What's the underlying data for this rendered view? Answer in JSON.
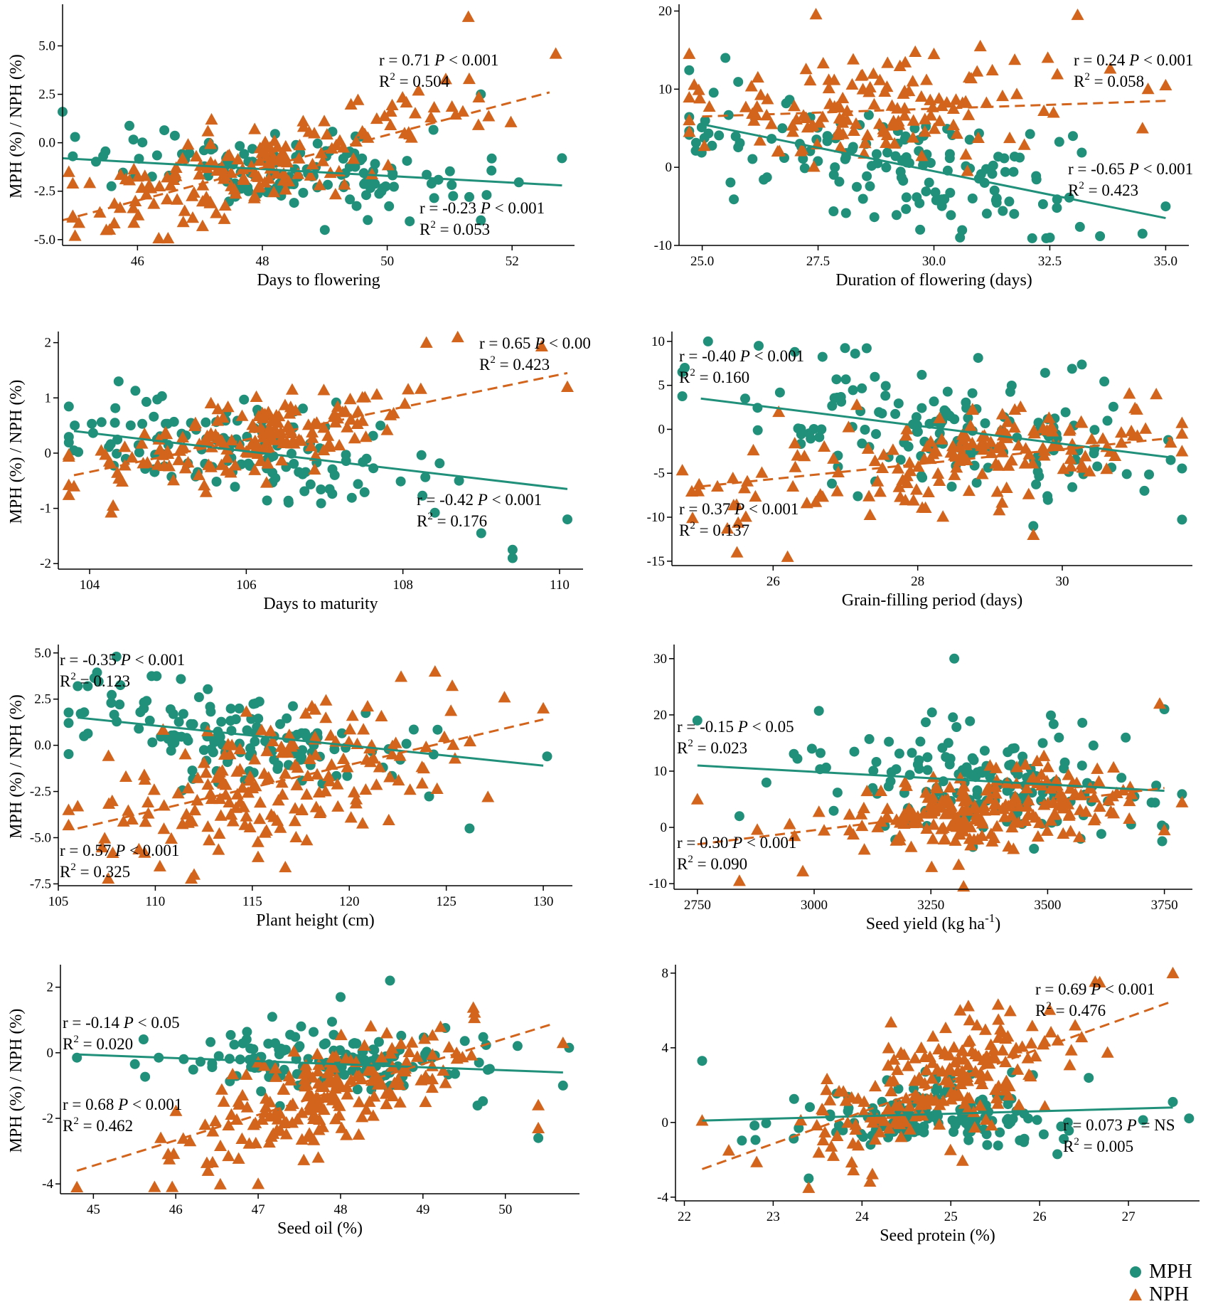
{
  "colors": {
    "mph": "#21907a",
    "nph": "#d2641c",
    "axis": "#000000"
  },
  "chart_data": [
    {
      "type": "scatter",
      "xlabel": "Days to flowering",
      "ylabel": "MPH (%) / NPH (%)",
      "xlim": [
        44.8,
        53.0
      ],
      "ylim": [
        -5.3,
        7.0
      ],
      "xticks": [
        46,
        48,
        50,
        52
      ],
      "xtick_labels": [
        "46",
        "48",
        "50",
        "52"
      ],
      "yticks": [
        -5,
        -2.5,
        0,
        2.5,
        5
      ],
      "ytick_labels": [
        "-5.0",
        "-2.5",
        "0.0",
        "2.5",
        "5.0"
      ],
      "series": [
        {
          "name": "MPH",
          "n": 140,
          "x_mean": 48.2,
          "x_sd": 1.5,
          "y_mean": -1.5,
          "y_sd": 1.1,
          "fit": [
            [
              44.8,
              -0.8
            ],
            [
              52.8,
              -2.2
            ]
          ],
          "extremes": [
            [
              44.8,
              1.6
            ],
            [
              45.0,
              0.3
            ],
            [
              51.5,
              2.5
            ],
            [
              52.8,
              -0.8
            ],
            [
              49.0,
              -4.5
            ],
            [
              51.5,
              -4.0
            ]
          ]
        },
        {
          "name": "NPH",
          "n": 170,
          "x_mean": 48.0,
          "x_sd": 1.6,
          "y_mean": -1.3,
          "y_sd": 1.3,
          "fit": [
            [
              44.8,
              -4.0
            ],
            [
              52.6,
              2.6
            ]
          ],
          "extremes": [
            [
              51.3,
              6.5
            ],
            [
              52.7,
              4.6
            ],
            [
              50.5,
              2.7
            ],
            [
              45.0,
              -4.8
            ],
            [
              44.9,
              -1.5
            ],
            [
              45.5,
              -4.5
            ]
          ]
        }
      ],
      "annotations": [
        {
          "series": "NPH",
          "r_text": "r = 0.71 ",
          "p_text": "P",
          "rest": " < 0.001",
          "r2": " = 0.504"
        },
        {
          "series": "MPH",
          "r_text": "r = -0.23 ",
          "p_text": "P",
          "rest": " < 0.001",
          "r2": " = 0.053"
        }
      ]
    },
    {
      "type": "scatter",
      "xlabel": "Duration of flowering (days)",
      "ylabel": "",
      "xlim": [
        24.5,
        35.5
      ],
      "ylim": [
        -10,
        20.5
      ],
      "xticks": [
        25,
        27.5,
        30,
        32.5,
        35
      ],
      "xtick_labels": [
        "25.0",
        "27.5",
        "30.0",
        "32.5",
        "35.0"
      ],
      "yticks": [
        -10,
        0,
        10,
        20
      ],
      "ytick_labels": [
        "-10",
        "0",
        "10",
        "20"
      ],
      "series": [
        {
          "name": "MPH",
          "n": 150,
          "x_mean": 28.8,
          "x_sd": 2.2,
          "y_mean": 1.5,
          "y_sd": 4.0,
          "fit": [
            [
              25.0,
              5.5
            ],
            [
              35.0,
              -6.5
            ]
          ],
          "extremes": [
            [
              25.5,
              14.0
            ],
            [
              34.5,
              -8.5
            ],
            [
              32.5,
              -9.0
            ],
            [
              35.0,
              -5.0
            ],
            [
              33.0,
              4.0
            ]
          ]
        },
        {
          "name": "NPH",
          "n": 140,
          "x_mean": 28.5,
          "x_sd": 2.1,
          "y_mean": 6.0,
          "y_sd": 3.6,
          "fit": [
            [
              25.0,
              6.5
            ],
            [
              35.0,
              8.5
            ]
          ],
          "extremes": [
            [
              33.1,
              19.5
            ],
            [
              35.0,
              10.5
            ],
            [
              34.5,
              5.0
            ],
            [
              31.0,
              15.5
            ],
            [
              30.0,
              14.5
            ]
          ]
        }
      ],
      "annotations": [
        {
          "series": "NPH",
          "r_text": "r = 0.24 ",
          "p_text": "P",
          "rest": " < 0.001",
          "r2": " = 0.058"
        },
        {
          "series": "MPH",
          "r_text": "r = -0.65 ",
          "p_text": "P",
          "rest": " < 0.001",
          "r2": " = 0.423"
        }
      ]
    },
    {
      "type": "scatter",
      "xlabel": "Days to maturity",
      "ylabel": "MPH (%) / NPH (%)",
      "xlim": [
        103.6,
        110.3
      ],
      "ylim": [
        -2.1,
        2.15
      ],
      "xticks": [
        104,
        106,
        108,
        110
      ],
      "xtick_labels": [
        "104",
        "106",
        "108",
        "110"
      ],
      "yticks": [
        -2,
        -1,
        0,
        1,
        2
      ],
      "ytick_labels": [
        "-2",
        "-1",
        "0",
        "1",
        "2"
      ],
      "series": [
        {
          "name": "MPH",
          "n": 140,
          "x_mean": 106.0,
          "x_sd": 1.2,
          "y_mean": 0.05,
          "y_sd": 0.45,
          "fit": [
            [
              103.8,
              0.4
            ],
            [
              110.1,
              -0.65
            ]
          ],
          "extremes": [
            [
              103.8,
              0.05
            ],
            [
              109.4,
              -1.9
            ],
            [
              109.4,
              -1.75
            ],
            [
              110.1,
              -1.2
            ],
            [
              109.0,
              -1.45
            ]
          ]
        },
        {
          "name": "NPH",
          "n": 170,
          "x_mean": 106.0,
          "x_sd": 1.1,
          "y_mean": 0.2,
          "y_sd": 0.4,
          "fit": [
            [
              103.8,
              -0.4
            ],
            [
              110.1,
              1.45
            ]
          ],
          "extremes": [
            [
              108.7,
              2.1
            ],
            [
              108.3,
              2.0
            ],
            [
              110.1,
              1.2
            ],
            [
              103.8,
              -0.6
            ],
            [
              104.3,
              -0.95
            ]
          ]
        }
      ],
      "annotations": [
        {
          "series": "NPH",
          "r_text": "r = 0.65 ",
          "p_text": "P",
          "rest": " < 0.00",
          "r2": " = 0.423"
        },
        {
          "series": "MPH",
          "r_text": "r = -0.42 ",
          "p_text": "P",
          "rest": " < 0.001",
          "r2": " = 0.176"
        }
      ]
    },
    {
      "type": "scatter",
      "xlabel": "Grain-filling period (days)",
      "ylabel": "",
      "xlim": [
        24.6,
        31.8
      ],
      "ylim": [
        -15.5,
        10.8
      ],
      "xticks": [
        26,
        28,
        30
      ],
      "xtick_labels": [
        "26",
        "28",
        "30"
      ],
      "yticks": [
        -15,
        -10,
        -5,
        0,
        5,
        10
      ],
      "ytick_labels": [
        "-15",
        "-10",
        "-5",
        "0",
        "5",
        "10"
      ],
      "series": [
        {
          "name": "MPH",
          "n": 150,
          "x_mean": 28.5,
          "x_sd": 1.5,
          "y_mean": -0.5,
          "y_sd": 4.0,
          "fit": [
            [
              25.0,
              3.5
            ],
            [
              31.5,
              -3.2
            ]
          ],
          "extremes": [
            [
              25.1,
              10.0
            ],
            [
              25.8,
              9.5
            ],
            [
              26.3,
              8.8
            ],
            [
              29.6,
              -11.0
            ],
            [
              31.5,
              -3.5
            ]
          ]
        },
        {
          "name": "NPH",
          "n": 170,
          "x_mean": 28.5,
          "x_sd": 1.6,
          "y_mean": -3.5,
          "y_sd": 3.5,
          "fit": [
            [
              25.0,
              -6.5
            ],
            [
              31.5,
              -1.0
            ]
          ],
          "extremes": [
            [
              25.5,
              -14.0
            ],
            [
              26.2,
              -14.5
            ],
            [
              29.6,
              -12.0
            ],
            [
              31.3,
              4.0
            ],
            [
              31.5,
              -1.5
            ]
          ]
        }
      ],
      "annotations": [
        {
          "series": "MPH",
          "r_text": "r = -0.40 ",
          "p_text": "P",
          "rest": " < 0.001",
          "r2": " = 0.160"
        },
        {
          "series": "NPH",
          "r_text": "r = 0.37 ",
          "p_text": "P",
          "rest": " < 0.001",
          "r2": " = 0.137"
        }
      ]
    },
    {
      "type": "scatter",
      "xlabel": "Plant height (cm)",
      "ylabel": "MPH (%) / NPH (%)",
      "xlim": [
        105,
        131.5
      ],
      "ylim": [
        -7.6,
        5.3
      ],
      "xticks": [
        105,
        110,
        115,
        120,
        125,
        130
      ],
      "xtick_labels": [
        "105",
        "110",
        "115",
        "120",
        "125",
        "130"
      ],
      "yticks": [
        -7.5,
        -5,
        -2.5,
        0,
        2.5,
        5
      ],
      "ytick_labels": [
        "-7.5",
        "-5.0",
        "-2.5",
        "0.0",
        "2.5",
        "5.0"
      ],
      "series": [
        {
          "name": "MPH",
          "n": 140,
          "x_mean": 114.5,
          "x_sd": 4.5,
          "y_mean": 0.6,
          "y_sd": 1.4,
          "fit": [
            [
              106.0,
              1.5
            ],
            [
              130.0,
              -1.1
            ]
          ],
          "extremes": [
            [
              106.0,
              3.2
            ],
            [
              108.0,
              4.8
            ],
            [
              126.2,
              -4.5
            ],
            [
              130.2,
              -0.6
            ]
          ]
        },
        {
          "name": "NPH",
          "n": 190,
          "x_mean": 116.0,
          "x_sd": 4.5,
          "y_mean": -1.5,
          "y_sd": 2.2,
          "fit": [
            [
              106.0,
              -4.5
            ],
            [
              130.0,
              1.4
            ]
          ],
          "extremes": [
            [
              112.0,
              -7.0
            ],
            [
              106.0,
              -3.3
            ],
            [
              128.0,
              2.6
            ],
            [
              130.0,
              2.0
            ]
          ]
        }
      ],
      "annotations": [
        {
          "series": "MPH",
          "r_text": "r = -0.35 ",
          "p_text": "P",
          "rest": " < 0.001",
          "r2": " = 0.123"
        },
        {
          "series": "NPH",
          "r_text": "r = 0.57 ",
          "p_text": "P",
          "rest": " < 0.001",
          "r2": " = 0.325"
        }
      ]
    },
    {
      "type": "scatter",
      "xlabel": "Seed yield (kg ha",
      "xlabel_sup": "-1",
      "xlabel_tail": ")",
      "ylabel": "",
      "xlim": [
        2700,
        3810
      ],
      "ylim": [
        -11,
        32
      ],
      "xticks": [
        2750,
        3000,
        3250,
        3500,
        3750
      ],
      "xtick_labels": [
        "2750",
        "3000",
        "3250",
        "3500",
        "3750"
      ],
      "yticks": [
        -10,
        0,
        10,
        20,
        30
      ],
      "ytick_labels": [
        "-10",
        "0",
        "10",
        "20",
        "30"
      ],
      "series": [
        {
          "name": "MPH",
          "n": 170,
          "x_mean": 3350,
          "x_sd": 180,
          "y_mean": 9.0,
          "y_sd": 5.5,
          "fit": [
            [
              2750,
              11.0
            ],
            [
              3750,
              6.5
            ]
          ],
          "extremes": [
            [
              3300,
              30.0
            ],
            [
              2750,
              19.0
            ],
            [
              3750,
              21.0
            ],
            [
              2840,
              2.0
            ],
            [
              3750,
              0.0
            ]
          ]
        },
        {
          "name": "NPH",
          "n": 220,
          "x_mean": 3380,
          "x_sd": 170,
          "y_mean": 2.5,
          "y_sd": 4.2,
          "fit": [
            [
              2750,
              -3.0
            ],
            [
              3750,
              7.0
            ]
          ],
          "extremes": [
            [
              3320,
              -10.5
            ],
            [
              2840,
              -9.5
            ],
            [
              3740,
              22.0
            ],
            [
              2750,
              5.0
            ],
            [
              3750,
              -0.5
            ]
          ]
        }
      ],
      "annotations": [
        {
          "series": "MPH",
          "r_text": "r = -0.15 ",
          "p_text": "P",
          "rest": " < 0.05",
          "r2": " = 0.023"
        },
        {
          "series": "NPH",
          "r_text": "r = 0.30 ",
          "p_text": "P",
          "rest": " < 0.001",
          "r2": " = 0.090"
        }
      ]
    },
    {
      "type": "scatter",
      "xlabel": "Seed oil (%)",
      "ylabel": "MPH (%) / NPH (%)",
      "xlim": [
        44.6,
        50.9
      ],
      "ylim": [
        -4.3,
        2.6
      ],
      "xticks": [
        45,
        46,
        47,
        48,
        49,
        50
      ],
      "xtick_labels": [
        "45",
        "46",
        "47",
        "48",
        "49",
        "50"
      ],
      "yticks": [
        -4,
        -2,
        0,
        2
      ],
      "ytick_labels": [
        "-4",
        "-2",
        "0",
        "2"
      ],
      "series": [
        {
          "name": "MPH",
          "n": 150,
          "x_mean": 47.8,
          "x_sd": 1.0,
          "y_mean": -0.4,
          "y_sd": 0.6,
          "fit": [
            [
              44.8,
              -0.05
            ],
            [
              50.7,
              -0.6
            ]
          ],
          "extremes": [
            [
              48.6,
              2.2
            ],
            [
              48.0,
              1.7
            ],
            [
              50.4,
              -2.6
            ],
            [
              50.7,
              -1.0
            ],
            [
              44.8,
              -0.15
            ]
          ]
        },
        {
          "name": "NPH",
          "n": 200,
          "x_mean": 47.8,
          "x_sd": 0.9,
          "y_mean": -1.3,
          "y_sd": 0.9,
          "fit": [
            [
              44.8,
              -3.6
            ],
            [
              50.6,
              0.9
            ]
          ],
          "extremes": [
            [
              44.8,
              -4.1
            ],
            [
              47.0,
              -4.0
            ],
            [
              50.4,
              -1.6
            ],
            [
              50.7,
              0.3
            ],
            [
              50.4,
              -2.3
            ]
          ]
        }
      ],
      "annotations": [
        {
          "series": "MPH",
          "r_text": "r = -0.14 ",
          "p_text": "P",
          "rest": " < 0.05",
          "r2": " = 0.020"
        },
        {
          "series": "NPH",
          "r_text": "r = 0.68 ",
          "p_text": "P",
          "rest": " < 0.001",
          "r2": " = 0.462"
        }
      ]
    },
    {
      "type": "scatter",
      "xlabel": "Seed protein (%)",
      "ylabel": "",
      "xlim": [
        21.9,
        27.8
      ],
      "ylim": [
        -4.2,
        8.3
      ],
      "xticks": [
        22,
        23,
        24,
        25,
        26,
        27
      ],
      "xtick_labels": [
        "22",
        "23",
        "24",
        "25",
        "26",
        "27"
      ],
      "yticks": [
        -4,
        0,
        4,
        8
      ],
      "ytick_labels": [
        "-4",
        "0",
        "4",
        "8"
      ],
      "series": [
        {
          "name": "MPH",
          "n": 150,
          "x_mean": 24.7,
          "x_sd": 0.8,
          "y_mean": 0.0,
          "y_sd": 1.0,
          "fit": [
            [
              22.2,
              0.1
            ],
            [
              27.5,
              0.8
            ]
          ],
          "extremes": [
            [
              22.2,
              3.3
            ],
            [
              23.4,
              -3.0
            ],
            [
              27.5,
              1.1
            ],
            [
              26.2,
              -1.7
            ]
          ]
        },
        {
          "name": "NPH",
          "n": 200,
          "x_mean": 24.8,
          "x_sd": 0.7,
          "y_mean": 1.3,
          "y_sd": 1.8,
          "fit": [
            [
              22.2,
              -2.5
            ],
            [
              27.5,
              6.5
            ]
          ],
          "extremes": [
            [
              27.5,
              8.0
            ],
            [
              22.2,
              0.1
            ],
            [
              22.5,
              -1.5
            ],
            [
              23.4,
              -3.5
            ],
            [
              26.4,
              5.2
            ]
          ]
        }
      ],
      "annotations": [
        {
          "series": "NPH",
          "r_text": "r = 0.69 ",
          "p_text": "P",
          "rest": " < 0.001",
          "r2": " = 0.476"
        },
        {
          "series": "MPH",
          "r_text": "r = 0.073 ",
          "p_text": "P",
          "rest": " = NS",
          "r2": " = 0.005"
        }
      ]
    }
  ],
  "legend": {
    "mph_label": "MPH",
    "nph_label": "NPH"
  }
}
